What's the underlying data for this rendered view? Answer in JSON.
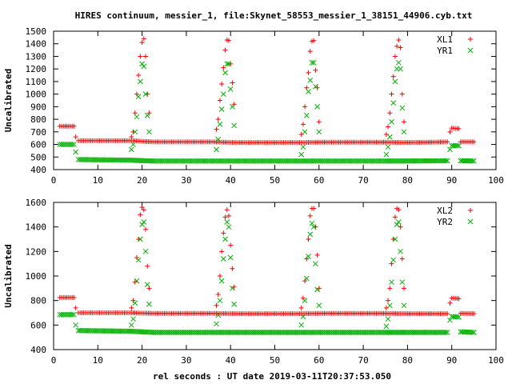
{
  "chart_data": {
    "type": "scatter",
    "title": "HIRES continuum, messier_1, file:Skynet_58553_messier_1_38151_44906.cyb.txt",
    "xlabel": "rel seconds : UT date 2019-03-11T20:37:53.050",
    "colors": {
      "XL": "#ff0000",
      "YR": "#00b000"
    },
    "panels": [
      {
        "ylabel": "Uncalibrated",
        "xlim": [
          0,
          100
        ],
        "ylim": [
          400,
          1500
        ],
        "xticks": [
          0,
          10,
          20,
          30,
          40,
          50,
          60,
          70,
          80,
          90,
          100
        ],
        "yticks": [
          400,
          500,
          600,
          700,
          800,
          900,
          1000,
          1100,
          1200,
          1300,
          1400,
          1500
        ],
        "legend_position": "top-right",
        "series": [
          {
            "name": "XL1",
            "marker": "plus",
            "baseline": [
              [
                1.4,
                745
              ],
              [
                4.6,
                745
              ],
              [
                5.0,
                660
              ],
              [
                5.6,
                630
              ],
              [
                17.2,
                630
              ],
              [
                22.6,
                620
              ],
              [
                36.4,
                620
              ],
              [
                41.2,
                615
              ],
              [
                55.6,
                615
              ],
              [
                60.4,
                618
              ],
              [
                74.6,
                618
              ],
              [
                79.6,
                615
              ],
              [
                89.0,
                620
              ],
              [
                89.6,
                700
              ],
              [
                90.0,
                730
              ],
              [
                91.6,
                725
              ],
              [
                92.0,
                620
              ],
              [
                95.0,
                620
              ]
            ],
            "peaks": [
              {
                "x": [
                  17.6,
                  18.0,
                  18.4,
                  18.8,
                  19.2,
                  19.6,
                  20.0,
                  20.4,
                  20.8,
                  21.2,
                  21.6
                ],
                "y": [
                  660,
                  700,
                  850,
                  1000,
                  1150,
                  1300,
                  1410,
                  1440,
                  1300,
                  1000,
                  850
                ]
              },
              {
                "x": [
                  36.8,
                  37.2,
                  37.6,
                  38.0,
                  38.4,
                  38.8,
                  39.2,
                  39.6,
                  40.0,
                  40.4,
                  40.8
                ],
                "y": [
                  720,
                  800,
                  950,
                  1080,
                  1210,
                  1350,
                  1430,
                  1425,
                  1240,
                  1090,
                  920
                ]
              },
              {
                "x": [
                  56.0,
                  56.4,
                  56.8,
                  57.2,
                  57.6,
                  58.0,
                  58.4,
                  58.8,
                  59.2,
                  59.6,
                  60.0
                ],
                "y": [
                  680,
                  760,
                  900,
                  1050,
                  1170,
                  1340,
                  1420,
                  1425,
                  1190,
                  1050,
                  780
                ]
              },
              {
                "x": [
                  75.2,
                  75.6,
                  76.0,
                  76.4,
                  76.8,
                  77.2,
                  77.6,
                  78.0,
                  78.4,
                  78.8,
                  79.2
                ],
                "y": [
                  680,
                  740,
                  850,
                  1000,
                  1140,
                  1300,
                  1380,
                  1430,
                  1370,
                  1000,
                  780
                ]
              }
            ]
          },
          {
            "name": "YR1",
            "marker": "cross",
            "baseline": [
              [
                1.4,
                600
              ],
              [
                4.6,
                600
              ],
              [
                5.0,
                540
              ],
              [
                5.6,
                480
              ],
              [
                17.2,
                475
              ],
              [
                22.6,
                468
              ],
              [
                36.4,
                468
              ],
              [
                41.2,
                468
              ],
              [
                55.6,
                468
              ],
              [
                60.4,
                468
              ],
              [
                74.6,
                468
              ],
              [
                79.6,
                468
              ],
              [
                89.0,
                470
              ],
              [
                89.6,
                560
              ],
              [
                90.0,
                590
              ],
              [
                91.6,
                590
              ],
              [
                92.0,
                470
              ],
              [
                95.0,
                468
              ]
            ],
            "peaks": [
              {
                "x": [
                  17.6,
                  18.0,
                  18.4,
                  18.8,
                  19.2,
                  19.6,
                  20.0,
                  20.4,
                  20.8,
                  21.2,
                  21.6
                ],
                "y": [
                  560,
                  600,
                  700,
                  820,
                  980,
                  1100,
                  1240,
                  1220,
                  1000,
                  830,
                  700
                ]
              },
              {
                "x": [
                  36.8,
                  37.2,
                  37.6,
                  38.0,
                  38.4,
                  38.8,
                  39.2,
                  39.6,
                  40.0,
                  40.4,
                  40.8
                ],
                "y": [
                  560,
                  640,
                  760,
                  880,
                  1000,
                  1170,
                  1240,
                  1240,
                  1040,
                  900,
                  750
                ]
              },
              {
                "x": [
                  56.0,
                  56.4,
                  56.8,
                  57.2,
                  57.6,
                  58.0,
                  58.4,
                  58.8,
                  59.2,
                  59.6,
                  60.0
                ],
                "y": [
                  520,
                  580,
                  700,
                  830,
                  1020,
                  1110,
                  1250,
                  1250,
                  1060,
                  900,
                  700
                ]
              },
              {
                "x": [
                  75.2,
                  75.6,
                  76.0,
                  76.4,
                  76.8,
                  77.2,
                  77.6,
                  78.0,
                  78.4,
                  78.8,
                  79.2
                ],
                "y": [
                  520,
                  580,
                  660,
                  780,
                  930,
                  1100,
                  1200,
                  1250,
                  1200,
                  890,
                  700
                ]
              }
            ]
          }
        ]
      },
      {
        "ylabel": "Uncalibrated",
        "xlim": [
          0,
          100
        ],
        "ylim": [
          400,
          1600
        ],
        "xticks": [
          0,
          10,
          20,
          30,
          40,
          50,
          60,
          70,
          80,
          90,
          100
        ],
        "yticks": [
          400,
          600,
          800,
          1000,
          1200,
          1400,
          1600
        ],
        "legend_position": "top-right",
        "series": [
          {
            "name": "XL2",
            "marker": "plus",
            "baseline": [
              [
                1.4,
                825
              ],
              [
                4.6,
                825
              ],
              [
                5.0,
                740
              ],
              [
                5.6,
                700
              ],
              [
                17.2,
                700
              ],
              [
                22.6,
                695
              ],
              [
                36.4,
                695
              ],
              [
                41.2,
                693
              ],
              [
                55.6,
                693
              ],
              [
                60.4,
                695
              ],
              [
                74.6,
                695
              ],
              [
                79.6,
                693
              ],
              [
                89.0,
                693
              ],
              [
                89.6,
                780
              ],
              [
                90.0,
                820
              ],
              [
                91.6,
                815
              ],
              [
                92.0,
                695
              ],
              [
                95.0,
                693
              ]
            ],
            "peaks": [
              {
                "x": [
                  17.6,
                  18.0,
                  18.4,
                  18.8,
                  19.2,
                  19.6,
                  20.0,
                  20.4,
                  20.8,
                  21.2,
                  21.6
                ],
                "y": [
                  740,
                  800,
                  950,
                  1150,
                  1300,
                  1500,
                  1560,
                  1540,
                  1380,
                  1080,
                  900
                ]
              },
              {
                "x": [
                  36.8,
                  37.2,
                  37.6,
                  38.0,
                  38.4,
                  38.8,
                  39.2,
                  39.6,
                  40.0,
                  40.4,
                  40.8
                ],
                "y": [
                  760,
                  850,
                  1000,
                  1200,
                  1350,
                  1480,
                  1540,
                  1490,
                  1250,
                  1060,
                  910
                ]
              },
              {
                "x": [
                  56.0,
                  56.4,
                  56.8,
                  57.2,
                  57.6,
                  58.0,
                  58.4,
                  58.8,
                  59.2,
                  59.6,
                  60.0
                ],
                "y": [
                  740,
                  820,
                  960,
                  1140,
                  1300,
                  1490,
                  1550,
                  1550,
                  1400,
                  1170,
                  900
                ]
              },
              {
                "x": [
                  75.2,
                  75.6,
                  76.0,
                  76.4,
                  76.8,
                  77.2,
                  77.6,
                  78.0,
                  78.4,
                  78.8,
                  79.2
                ],
                "y": [
                  740,
                  800,
                  900,
                  1100,
                  1300,
                  1480,
                  1550,
                  1540,
                  1400,
                  1140,
                  900
                ]
              }
            ]
          },
          {
            "name": "YR2",
            "marker": "cross",
            "baseline": [
              [
                1.4,
                685
              ],
              [
                4.6,
                685
              ],
              [
                5.0,
                600
              ],
              [
                5.6,
                555
              ],
              [
                17.2,
                550
              ],
              [
                22.6,
                540
              ],
              [
                36.4,
                540
              ],
              [
                41.2,
                540
              ],
              [
                55.6,
                540
              ],
              [
                60.4,
                540
              ],
              [
                74.6,
                540
              ],
              [
                79.6,
                540
              ],
              [
                89.0,
                540
              ],
              [
                89.6,
                640
              ],
              [
                90.0,
                670
              ],
              [
                91.6,
                665
              ],
              [
                92.0,
                545
              ],
              [
                95.0,
                540
              ]
            ],
            "peaks": [
              {
                "x": [
                  17.6,
                  18.0,
                  18.4,
                  18.8,
                  19.2,
                  19.6,
                  20.0,
                  20.4,
                  20.8,
                  21.2,
                  21.6
                ],
                "y": [
                  600,
                  650,
                  780,
                  960,
                  1130,
                  1300,
                  1420,
                  1440,
                  1200,
                  930,
                  770
                ]
              },
              {
                "x": [
                  36.8,
                  37.2,
                  37.6,
                  38.0,
                  38.4,
                  38.8,
                  39.2,
                  39.6,
                  40.0,
                  40.4,
                  40.8
                ],
                "y": [
                  610,
                  680,
                  800,
                  960,
                  1140,
                  1300,
                  1440,
                  1400,
                  1150,
                  900,
                  770
                ]
              },
              {
                "x": [
                  56.0,
                  56.4,
                  56.8,
                  57.2,
                  57.6,
                  58.0,
                  58.4,
                  58.8,
                  59.2,
                  59.6,
                  60.0
                ],
                "y": [
                  600,
                  670,
                  800,
                  980,
                  1160,
                  1340,
                  1430,
                  1400,
                  1100,
                  890,
                  760
                ]
              },
              {
                "x": [
                  75.2,
                  75.6,
                  76.0,
                  76.4,
                  76.8,
                  77.2,
                  77.6,
                  78.0,
                  78.4,
                  78.8,
                  79.2
                ],
                "y": [
                  590,
                  650,
                  760,
                  950,
                  1130,
                  1300,
                  1420,
                  1440,
                  1200,
                  950,
                  760
                ]
              }
            ]
          }
        ]
      }
    ]
  }
}
